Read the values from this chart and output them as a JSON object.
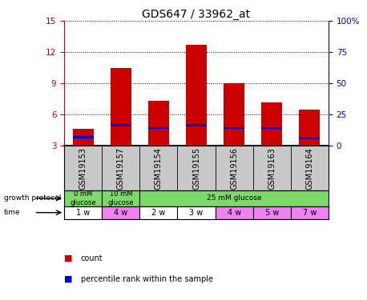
{
  "title": "GDS647 / 33962_at",
  "samples": [
    "GSM19153",
    "GSM19157",
    "GSM19154",
    "GSM19155",
    "GSM19156",
    "GSM19163",
    "GSM19164"
  ],
  "count_values": [
    4.6,
    10.5,
    7.3,
    12.7,
    9.0,
    7.2,
    6.5
  ],
  "percentile_values": [
    3.8,
    5.0,
    4.7,
    5.0,
    4.7,
    4.7,
    3.7
  ],
  "ylim_left": [
    3,
    15
  ],
  "yticks_left": [
    3,
    6,
    9,
    12,
    15
  ],
  "ylim_right": [
    0,
    100
  ],
  "yticks_right": [
    0,
    25,
    50,
    75,
    100
  ],
  "bar_color": "#cc0000",
  "marker_color": "#0000cc",
  "plot_bg": "#ffffff",
  "time_labels": [
    "1 w",
    "4 w",
    "2 w",
    "3 w",
    "4 w",
    "5 w",
    "7 w"
  ],
  "time_bg_colors": [
    "#ffffff",
    "#ee82ee",
    "#ffffff",
    "#ffffff",
    "#ee82ee",
    "#ee82ee",
    "#ee82ee"
  ],
  "sample_bg_color": "#c8c8c8",
  "growth_green": "#7dda6a",
  "legend_count_label": "count",
  "legend_percentile_label": "percentile rank within the sample",
  "title_fontsize": 10,
  "label_fontsize": 7,
  "tick_fontsize": 7.5
}
